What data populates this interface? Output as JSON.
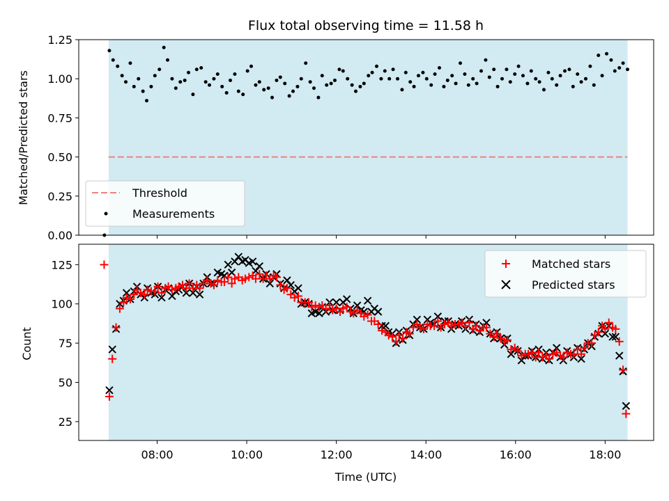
{
  "chart_data": [
    {
      "type": "scatter",
      "title": "Flux total observing time = 11.58 h",
      "xlabel": "",
      "ylabel": "Matched/Predicted stars",
      "ylim": [
        0.0,
        1.25
      ],
      "yticks": [
        "0.00",
        "0.25",
        "0.50",
        "0.75",
        "1.00",
        "1.25"
      ],
      "xlim": [
        "06:15",
        "19:05"
      ],
      "observing_window": [
        "06:55",
        "18:30"
      ],
      "threshold": 0.5,
      "legend_position": "lower-left",
      "series": [
        {
          "name": "Threshold",
          "kind": "dashed-line",
          "x": [
            "06:55",
            "18:30"
          ],
          "values": [
            0.5,
            0.5
          ]
        },
        {
          "name": "Measurements",
          "kind": "points",
          "x": [],
          "values": []
        }
      ]
    },
    {
      "type": "scatter",
      "title": "",
      "xlabel": "Time (UTC)",
      "ylabel": "Count",
      "ylim": [
        13,
        138
      ],
      "yticks": [
        "25",
        "50",
        "75",
        "100",
        "125"
      ],
      "xticks": [
        "08:00",
        "10:00",
        "12:00",
        "14:00",
        "16:00",
        "18:00"
      ],
      "xlim": [
        "06:15",
        "19:05"
      ],
      "legend_position": "upper-right",
      "series": [
        {
          "name": "Matched stars",
          "marker": "plus",
          "x": [],
          "values": []
        },
        {
          "name": "Predicted stars",
          "marker": "x",
          "x": [],
          "values": []
        }
      ]
    }
  ],
  "colors": {
    "shade": "#add8e6",
    "threshold": "#f08080",
    "matched": "#ff0000",
    "predicted": "#000000",
    "measurement": "#000000"
  }
}
